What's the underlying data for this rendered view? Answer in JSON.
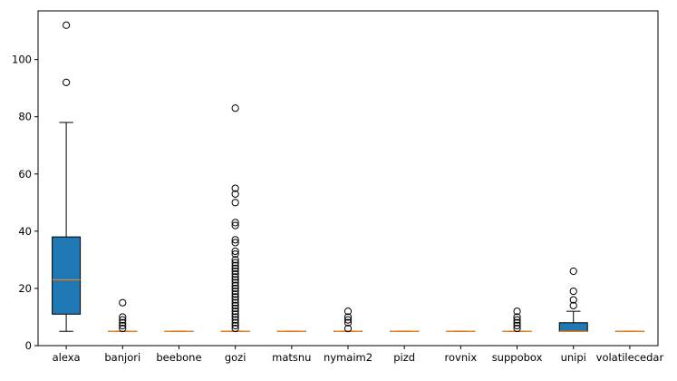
{
  "chart_data": {
    "type": "box",
    "title": "",
    "xlabel": "",
    "ylabel": "",
    "ylim": [
      0,
      117
    ],
    "yticks": [
      0,
      20,
      40,
      60,
      80,
      100
    ],
    "grid": false,
    "box_color": "#1f77b4",
    "median_color": "#ff7f0e",
    "categories": [
      "alexa",
      "banjori",
      "beebone",
      "gozi",
      "matsnu",
      "nymaim2",
      "pizd",
      "rovnix",
      "suppobox",
      "unipi",
      "volatilecedar"
    ],
    "boxes": [
      {
        "category": "alexa",
        "whislo": 5,
        "q1": 11,
        "med": 23,
        "q3": 38,
        "whishi": 78,
        "fliers": [
          92,
          112
        ]
      },
      {
        "category": "banjori",
        "whislo": 5,
        "q1": 5,
        "med": 5,
        "q3": 5,
        "whishi": 5,
        "fliers": [
          6,
          7,
          8,
          9,
          10,
          15
        ]
      },
      {
        "category": "beebone",
        "whislo": 5,
        "q1": 5,
        "med": 5,
        "q3": 5,
        "whishi": 5,
        "fliers": []
      },
      {
        "category": "gozi",
        "whislo": 5,
        "q1": 5,
        "med": 5,
        "q3": 5,
        "whishi": 5,
        "fliers": [
          6,
          7,
          8,
          9,
          10,
          11,
          12,
          13,
          14,
          15,
          16,
          17,
          18,
          19,
          20,
          21,
          22,
          23,
          24,
          25,
          26,
          27,
          28,
          29,
          30,
          32,
          33,
          36,
          37,
          42,
          43,
          50,
          53,
          55,
          83
        ]
      },
      {
        "category": "matsnu",
        "whislo": 5,
        "q1": 5,
        "med": 5,
        "q3": 5,
        "whishi": 5,
        "fliers": []
      },
      {
        "category": "nymaim2",
        "whislo": 5,
        "q1": 5,
        "med": 5,
        "q3": 5,
        "whishi": 5,
        "fliers": [
          6,
          8,
          9,
          10,
          12
        ]
      },
      {
        "category": "pizd",
        "whislo": 5,
        "q1": 5,
        "med": 5,
        "q3": 5,
        "whishi": 5,
        "fliers": []
      },
      {
        "category": "rovnix",
        "whislo": 5,
        "q1": 5,
        "med": 5,
        "q3": 5,
        "whishi": 5,
        "fliers": []
      },
      {
        "category": "suppobox",
        "whislo": 5,
        "q1": 5,
        "med": 5,
        "q3": 5,
        "whishi": 5,
        "fliers": [
          6,
          7,
          8,
          9,
          10,
          12
        ]
      },
      {
        "category": "unipi",
        "whislo": 5,
        "q1": 5,
        "med": 5,
        "q3": 8,
        "whishi": 12,
        "fliers": [
          14,
          16,
          19,
          26
        ]
      },
      {
        "category": "volatilecedar",
        "whislo": 5,
        "q1": 5,
        "med": 5,
        "q3": 5,
        "whishi": 5,
        "fliers": []
      }
    ]
  }
}
